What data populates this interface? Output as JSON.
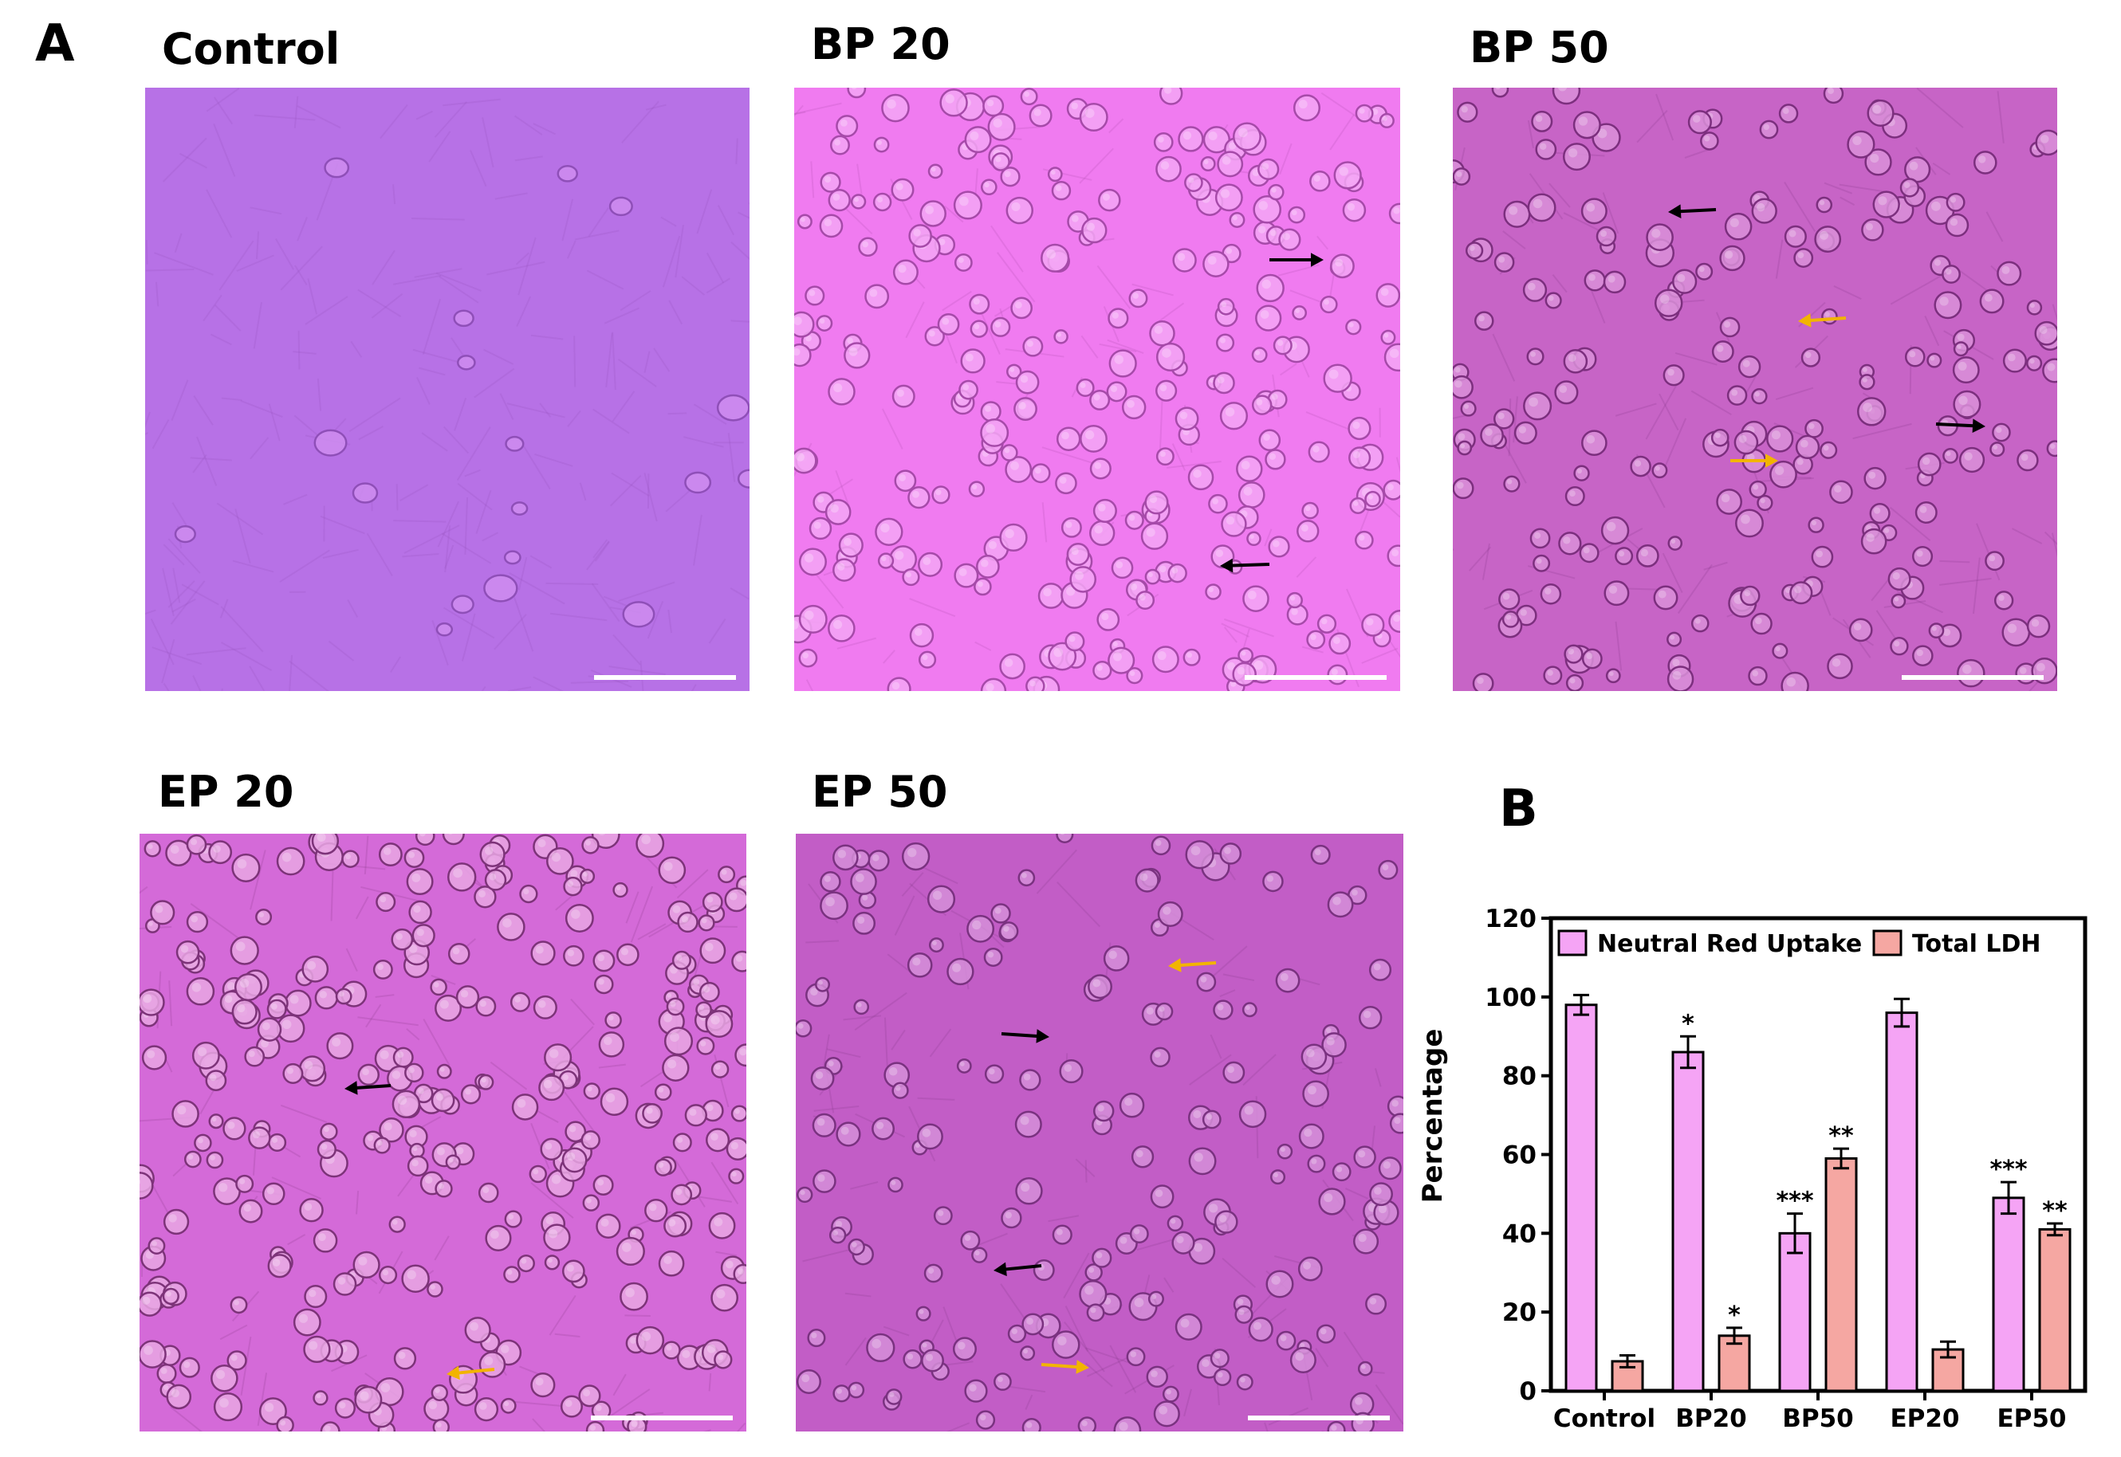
{
  "figure": {
    "panel_a_label": "A",
    "panel_b_label": "B",
    "images": [
      {
        "title": "Control",
        "tint": "#b771e6",
        "cell": "#cf8ff0",
        "cell_edge": "#8f4fb8",
        "cell_count": 18,
        "round": false
      },
      {
        "title": "BP 20",
        "tint": "#f07bf0",
        "cell": "#f3a6f5",
        "cell_edge": "#a64aa9",
        "cell_count": 260,
        "round": true
      },
      {
        "title": "BP 50",
        "tint": "#c764c6",
        "cell": "#d98fd8",
        "cell_edge": "#7c2f7e",
        "cell_count": 200,
        "round": true
      },
      {
        "title": "EP 20",
        "tint": "#d46ad8",
        "cell": "#e8a6e3",
        "cell_edge": "#7d3379",
        "cell_count": 300,
        "round": true
      },
      {
        "title": "EP 50",
        "tint": "#c25dc6",
        "cell": "#d58ed8",
        "cell_edge": "#7a3280",
        "cell_count": 170,
        "round": true
      }
    ],
    "arrow_colors": {
      "black": "#000000",
      "yellow": "#f2b400"
    }
  },
  "chart_data": {
    "type": "bar",
    "categories": [
      "Control",
      "BP20",
      "BP50",
      "EP20",
      "EP50"
    ],
    "ylabel": "Percentage",
    "xlabel": "",
    "ylim": [
      0,
      120
    ],
    "yticks": [
      0,
      20,
      40,
      60,
      80,
      100,
      120
    ],
    "legend_position": "top",
    "series": [
      {
        "name": "Neutral Red Uptake",
        "color": "#f5a4f5",
        "values": [
          98,
          86,
          40,
          96,
          49
        ],
        "errors": [
          2.5,
          4,
          5,
          3.5,
          4
        ],
        "significance": [
          "",
          "*",
          "***",
          "",
          "***"
        ]
      },
      {
        "name": "Total LDH",
        "color": "#f5a7a2",
        "values": [
          7.5,
          14,
          59,
          10.5,
          41
        ],
        "errors": [
          1.5,
          2,
          2.5,
          2,
          1.5
        ],
        "significance": [
          "",
          "*",
          "**",
          "",
          "**"
        ]
      }
    ]
  }
}
